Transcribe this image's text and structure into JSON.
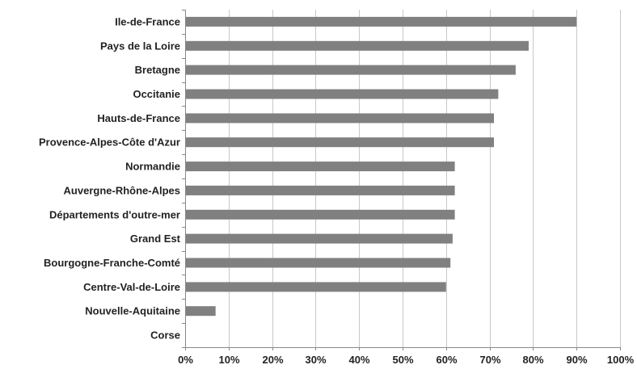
{
  "chart_data": {
    "type": "bar",
    "orientation": "horizontal",
    "categories": [
      "Ile-de-France",
      "Pays de la Loire",
      "Bretagne",
      "Occitanie",
      "Hauts-de-France",
      "Provence-Alpes-Côte d'Azur",
      "Normandie",
      "Auvergne-Rhône-Alpes",
      "Départements d'outre-mer",
      "Grand Est",
      "Bourgogne-Franche-Comté",
      "Centre-Val-de-Loire",
      "Nouvelle-Aquitaine",
      "Corse"
    ],
    "values": [
      0.9,
      0.79,
      0.76,
      0.72,
      0.71,
      0.71,
      0.62,
      0.62,
      0.62,
      0.615,
      0.61,
      0.6,
      0.07,
      0.0
    ],
    "xlim": [
      0,
      1
    ],
    "xticks": [
      "0%",
      "10%",
      "20%",
      "30%",
      "40%",
      "50%",
      "60%",
      "70%",
      "80%",
      "90%",
      "100%"
    ],
    "grid": true,
    "bar_color": "#808080",
    "grid_color": "#c8c8c8"
  }
}
